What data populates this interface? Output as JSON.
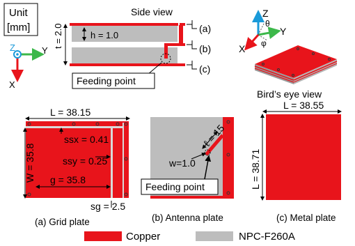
{
  "unit_box": {
    "line1": "Unit",
    "line2": "[mm]"
  },
  "side_view": {
    "title": "Side view",
    "h_label": "h = 1.0",
    "t_label": "t = 2.0",
    "layer_labels": [
      "(a)",
      "(b)",
      "(c)"
    ],
    "feeding_point": "Feeding point"
  },
  "axes_small": {
    "z": "Z",
    "y": "Y",
    "x": "X"
  },
  "birds_eye": {
    "title": "Bird’s eye view",
    "axes": {
      "z": "Z",
      "y": "Y",
      "x": "X",
      "theta": "θ",
      "phi": "φ"
    }
  },
  "grid_plate": {
    "L": "L = 38.15",
    "W": "W = 35.8",
    "ssx": "ssx = 0.41",
    "ssy": "ssy = 0.25",
    "g": "g = 35.8",
    "sg": "sg = 2.5",
    "caption": "(a) Grid plate"
  },
  "antenna_plate": {
    "ell": "ℓ = 15",
    "w": "w=1.0",
    "feeding_point": "Feeding point",
    "caption": "(b) Antenna plate"
  },
  "metal_plate": {
    "L_top": "L = 38.55",
    "L_side": "L = 38.71",
    "caption": "(c) Metal plate"
  },
  "legend": {
    "items": [
      {
        "label": "Copper",
        "color": "#e8141b"
      },
      {
        "label": "NPC-F260A",
        "color": "#bdbdbd"
      }
    ]
  },
  "colors": {
    "copper": "#e8141b",
    "substrate": "#bdbdbd",
    "axis_blue": "#1a9ad9",
    "axis_green": "#3cb84a",
    "axis_red": "#e8141b"
  }
}
